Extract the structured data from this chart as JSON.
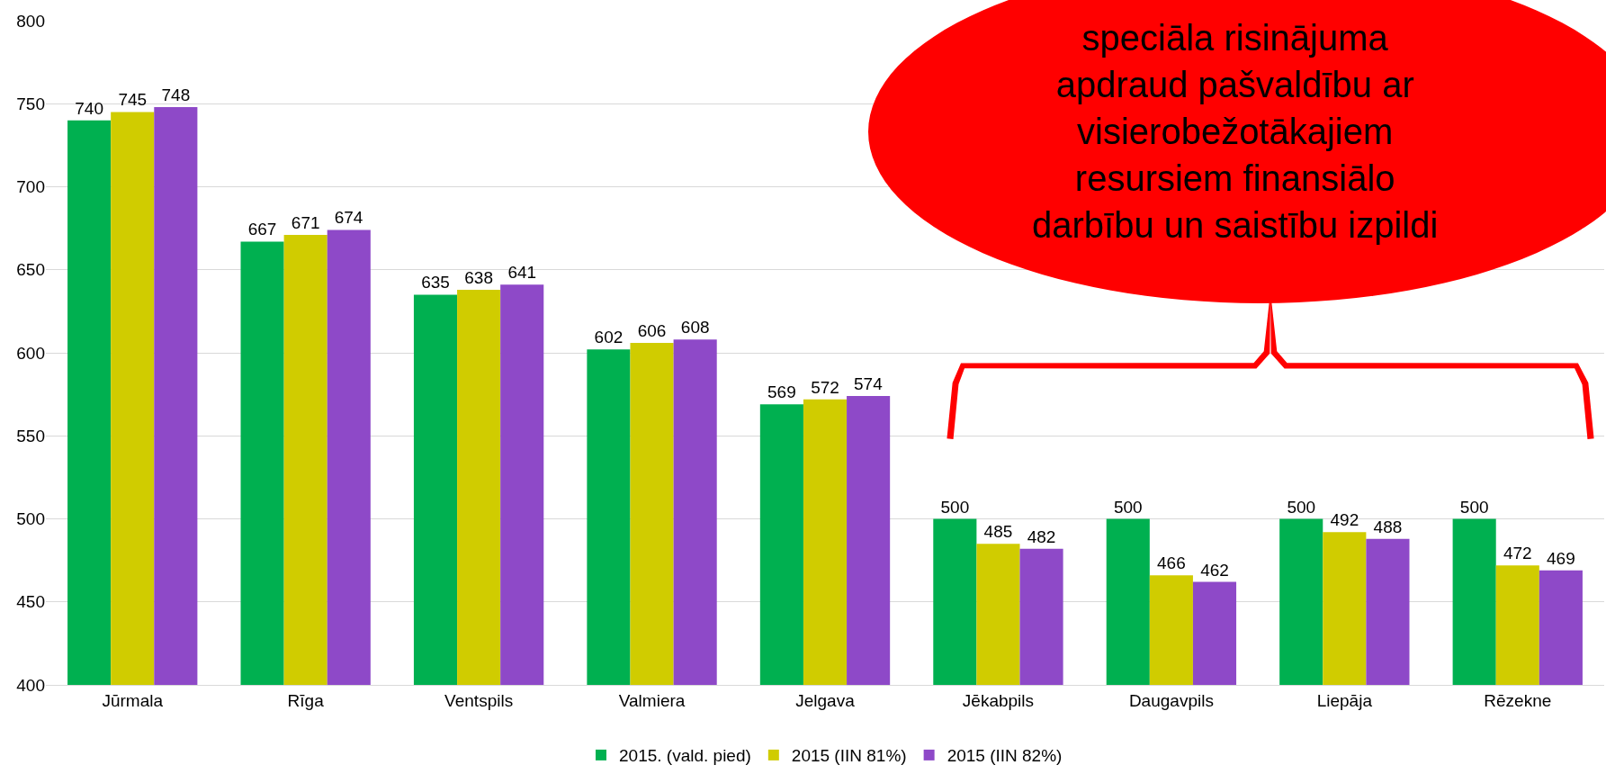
{
  "chart_data": {
    "type": "bar",
    "categories": [
      "Jūrmala",
      "Rīga",
      "Ventspils",
      "Valmiera",
      "Jelgava",
      "Jēkabpils",
      "Daugavpils",
      "Liepāja",
      "Rēzekne"
    ],
    "series": [
      {
        "name": "2015. (vald. pied)",
        "color": "#00b050",
        "values": [
          740,
          667,
          635,
          602,
          569,
          500,
          500,
          500,
          500
        ]
      },
      {
        "name": "2015 (IIN 81%)",
        "color": "#d0cc00",
        "values": [
          745,
          671,
          638,
          606,
          572,
          485,
          466,
          492,
          472
        ]
      },
      {
        "name": "2015 (IIN 82%)",
        "color": "#8e49c8",
        "values": [
          748,
          674,
          641,
          608,
          574,
          482,
          462,
          488,
          469
        ]
      }
    ],
    "ylim": [
      400,
      800
    ],
    "yticks": [
      400,
      450,
      500,
      550,
      600,
      650,
      700,
      750,
      800
    ],
    "grid": "y",
    "legend": "bottom",
    "data_labels": true,
    "annotations": [
      "speciāla risinājuma\napdraud pašvaldību ar\nvisierobežotākajiem\nresursiem finansiālo\ndarbību un saistību izpildi"
    ]
  }
}
